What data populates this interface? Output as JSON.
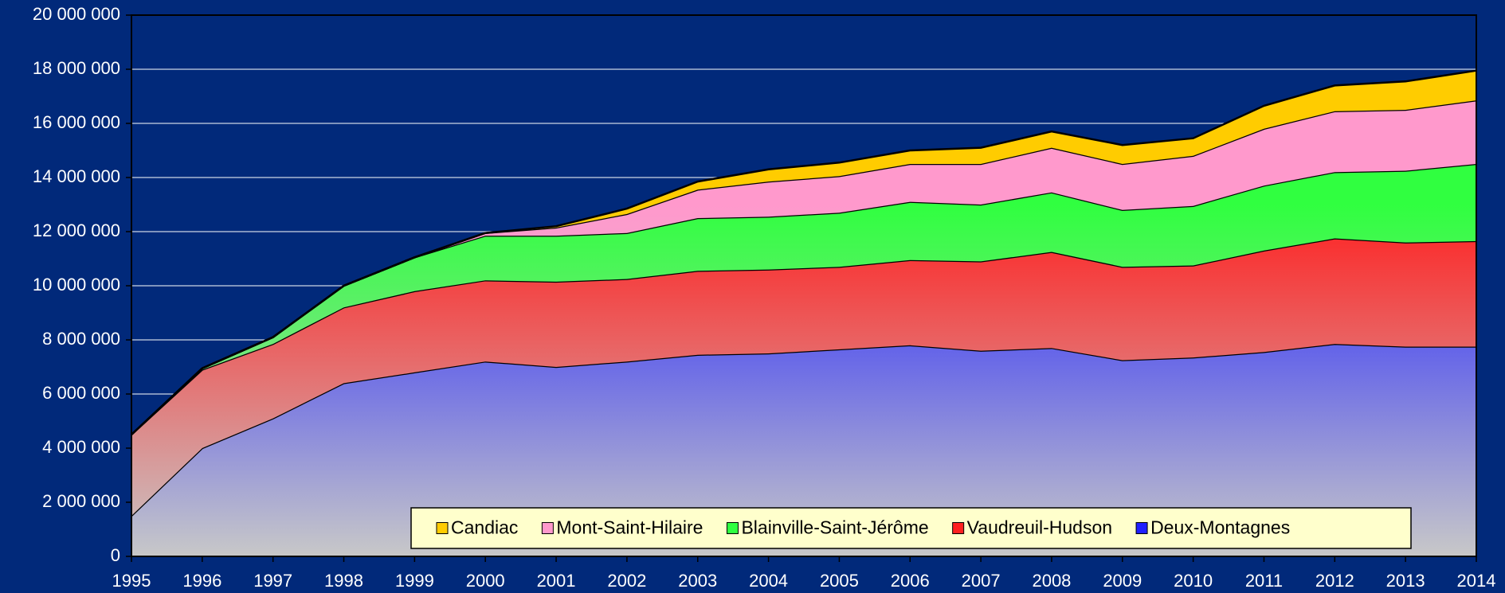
{
  "chart_data": {
    "type": "stacked_area",
    "categories": [
      "1995",
      "1996",
      "1997",
      "1998",
      "1999",
      "2000",
      "2001",
      "2002",
      "2003",
      "2004",
      "2005",
      "2006",
      "2007",
      "2008",
      "2009",
      "2010",
      "2011",
      "2012",
      "2013",
      "2014"
    ],
    "series": [
      {
        "name": "Deux-Montagnes",
        "color": "#2020ff",
        "values": [
          1500000,
          4000000,
          5100000,
          6400000,
          6800000,
          7200000,
          7000000,
          7200000,
          7450000,
          7500000,
          7650000,
          7800000,
          7600000,
          7700000,
          7250000,
          7350000,
          7550000,
          7850000,
          7750000,
          7750000
        ]
      },
      {
        "name": "Vaudreuil-Hudson",
        "color": "#ff2020",
        "values": [
          3000000,
          2900000,
          2750000,
          2800000,
          3000000,
          3000000,
          3150000,
          3050000,
          3100000,
          3100000,
          3050000,
          3150000,
          3300000,
          3550000,
          3450000,
          3400000,
          3750000,
          3900000,
          3850000,
          3900000
        ]
      },
      {
        "name": "Blainville-Saint-Jérôme",
        "color": "#30ff40",
        "values": [
          0,
          50000,
          250000,
          800000,
          1250000,
          1650000,
          1700000,
          1700000,
          1950000,
          1950000,
          2000000,
          2150000,
          2100000,
          2200000,
          2100000,
          2200000,
          2400000,
          2450000,
          2650000,
          2850000
        ]
      },
      {
        "name": "Mont-Saint-Hilaire",
        "color": "#ff99cc",
        "values": [
          0,
          0,
          0,
          0,
          0,
          100000,
          300000,
          700000,
          1050000,
          1300000,
          1350000,
          1400000,
          1500000,
          1650000,
          1700000,
          1850000,
          2100000,
          2250000,
          2250000,
          2350000
        ]
      },
      {
        "name": "Candiac",
        "color": "#ffcc00",
        "values": [
          0,
          0,
          0,
          0,
          0,
          0,
          50000,
          200000,
          300000,
          450000,
          500000,
          500000,
          600000,
          600000,
          700000,
          650000,
          850000,
          950000,
          1050000,
          1100000
        ]
      }
    ],
    "ylim": [
      0,
      20000000
    ],
    "yticks": [
      0,
      {
        "value": 2000000,
        "label": "2 000 000"
      },
      {
        "value": 4000000,
        "label": "4 000 000"
      },
      {
        "value": 6000000,
        "label": "6 000 000"
      },
      {
        "value": 8000000,
        "label": "8 000 000"
      },
      {
        "value": 10000000,
        "label": "10 000 000"
      },
      {
        "value": 12000000,
        "label": "12 000 000"
      },
      {
        "value": 14000000,
        "label": "14 000 000"
      },
      {
        "value": 16000000,
        "label": "16 000 000"
      },
      {
        "value": 18000000,
        "label": "18 000 000"
      },
      {
        "value": 20000000,
        "label": "20 000 000"
      }
    ],
    "grid": true,
    "legend": "bottom-right",
    "background": "#01297a"
  }
}
